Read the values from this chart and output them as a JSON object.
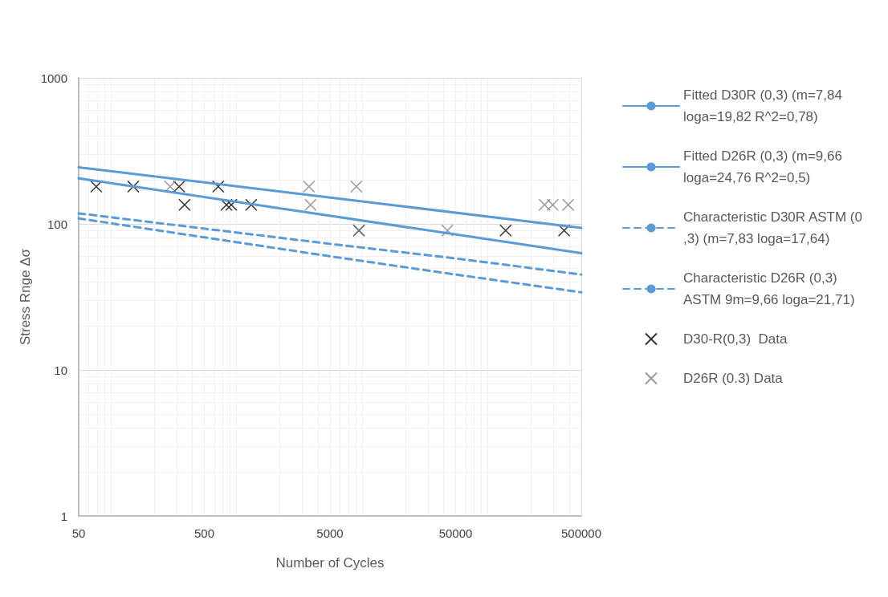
{
  "chart_data": {
    "type": "line",
    "xlabel": "Number of Cycles",
    "ylabel": "Stress Rnge Δσ",
    "log": "xy",
    "grid": true,
    "legend": "right",
    "xlim": [
      50,
      500000
    ],
    "xticks": [
      50,
      500,
      5000,
      50000,
      500000
    ],
    "ylim": [
      1,
      1000
    ],
    "yticks": [
      1,
      10,
      100,
      1000
    ],
    "series": [
      {
        "name": "Fitted D30R (0,3) (m=7,84 loga=19,82 R^2=0,78)",
        "color": "#5b9bd5",
        "line_style": "solid",
        "marker": "none",
        "x": [
          50,
          500000
        ],
        "values": [
          205,
          63
        ]
      },
      {
        "name": "Fitted D26R (0,3) (m=9,66 loga=24,76 R^2=0,5)",
        "color": "#5b9bd5",
        "line_style": "solid",
        "marker": "none",
        "x": [
          50,
          500000
        ],
        "values": [
          244,
          94
        ]
      },
      {
        "name": "Characteristic D30R ASTM (0,3) (m=7,83 loga=17,64)",
        "color": "#5b9bd5",
        "line_style": "dashed",
        "marker": "none",
        "x": [
          50,
          5000,
          50000,
          500000
        ],
        "values": [
          109,
          60,
          45,
          34
        ]
      },
      {
        "name": "Characteristic D26R (0,3) ASTM 9m=9,66 loga=21,71)",
        "color": "#5b9bd5",
        "line_style": "dashed",
        "marker": "none",
        "x": [
          50,
          5000,
          50000,
          500000
        ],
        "values": [
          118,
          73,
          58,
          45
        ]
      },
      {
        "name": "D30-R(0,3)  Data",
        "type": "scatter",
        "color": "#000000",
        "marker": "cross",
        "x": [
          69,
          136,
          315,
          348,
          645,
          750,
          820,
          1180,
          8500,
          125000,
          365000
        ],
        "values": [
          180,
          180,
          180,
          135,
          180,
          135,
          135,
          135,
          90,
          90,
          90
        ]
      },
      {
        "name": "D26R (0.3) Data",
        "type": "scatter",
        "color": "#7f7f7f",
        "marker": "cross",
        "x": [
          267,
          3400,
          3500,
          8100,
          8500,
          43000,
          255000,
          296000,
          393000
        ],
        "values": [
          180,
          180,
          135,
          180,
          90,
          90,
          135,
          135,
          135
        ]
      }
    ]
  }
}
